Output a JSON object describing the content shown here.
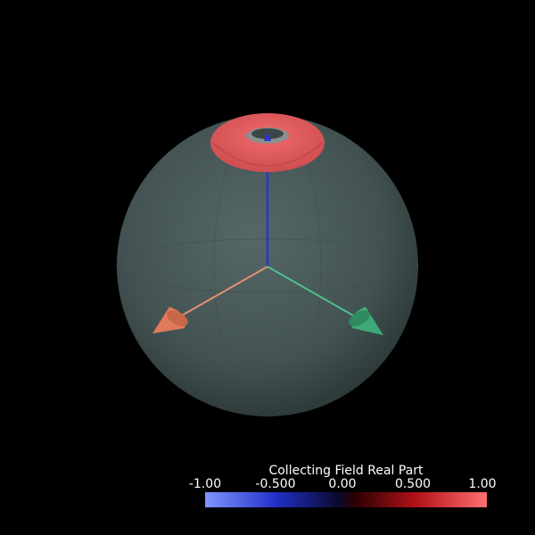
{
  "scene": {
    "background": "#000000",
    "sphere_color": "#4a5b5b",
    "ring_color": "#e25658",
    "axis_colors": {
      "vertical": "#2636d6",
      "left": "#e07a5a",
      "right": "#3fa878"
    },
    "icons": [
      "translucent-sphere",
      "torus",
      "z-axis-arrow",
      "x-axis-arrow",
      "y-axis-arrow"
    ]
  },
  "colorbar": {
    "title": "Collecting Field Real Part",
    "ticks": [
      "-1.00",
      "-0.500",
      "0.00",
      "0.500",
      "1.00"
    ],
    "range": [
      -1.0,
      1.0
    ],
    "colors": {
      "min": "#7f96ff",
      "low": "#2230c8",
      "mid": "#0a0a30",
      "high": "#b31218",
      "max": "#ff6f73"
    }
  }
}
